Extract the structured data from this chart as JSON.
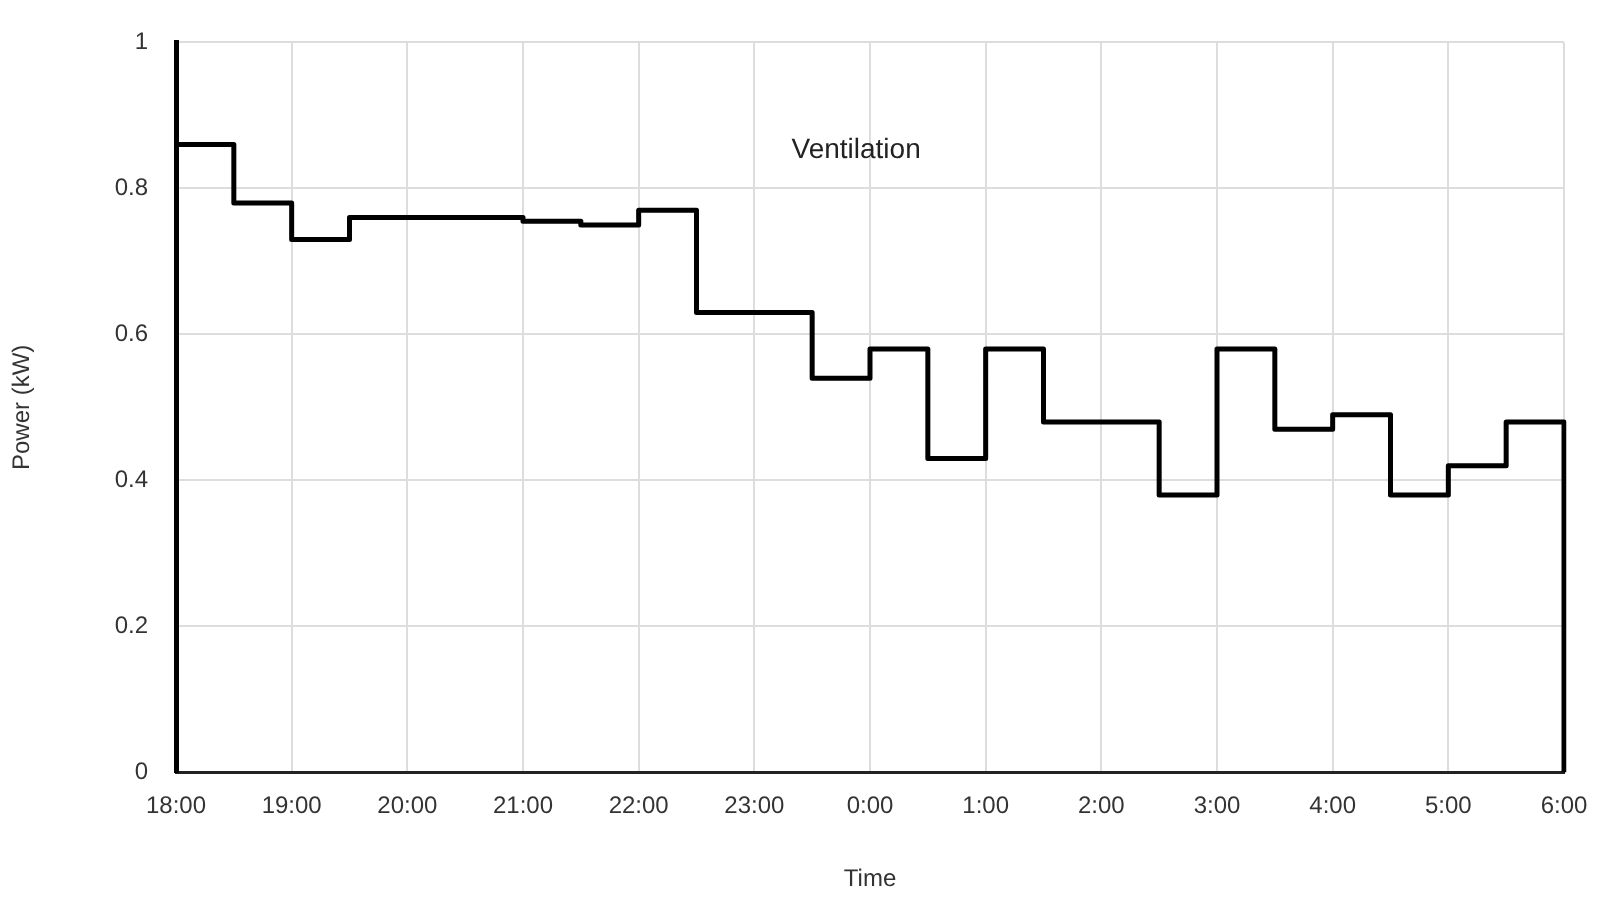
{
  "chart_data": {
    "type": "step",
    "title": "Ventilation",
    "xlabel": "Time",
    "ylabel": "Power (kW)",
    "categories": [
      "18:00",
      null,
      "19:00",
      null,
      "20:00",
      null,
      "21:00",
      null,
      "22:00",
      null,
      "23:00",
      null,
      "0:00",
      null,
      "1:00",
      null,
      "2:00",
      null,
      "3:00",
      null,
      "4:00",
      null,
      "5:00",
      null,
      "6:00"
    ],
    "series": [
      {
        "color": "#000000",
        "values": [
          0.86,
          0.78,
          0.73,
          0.76,
          0.76,
          0.76,
          0.755,
          0.75,
          0.77,
          0.63,
          0.63,
          0.54,
          0.58,
          0.43,
          0.58,
          0.48,
          0.48,
          0.38,
          0.58,
          0.47,
          0.49,
          0.38,
          0.42,
          0.48,
          0
        ]
      }
    ],
    "ylim": [
      0,
      1
    ],
    "yticks": [
      0,
      0.2,
      0.4,
      0.6,
      0.8,
      1
    ],
    "grid": true,
    "legend": false,
    "marker": "none",
    "line_style": "solid"
  }
}
